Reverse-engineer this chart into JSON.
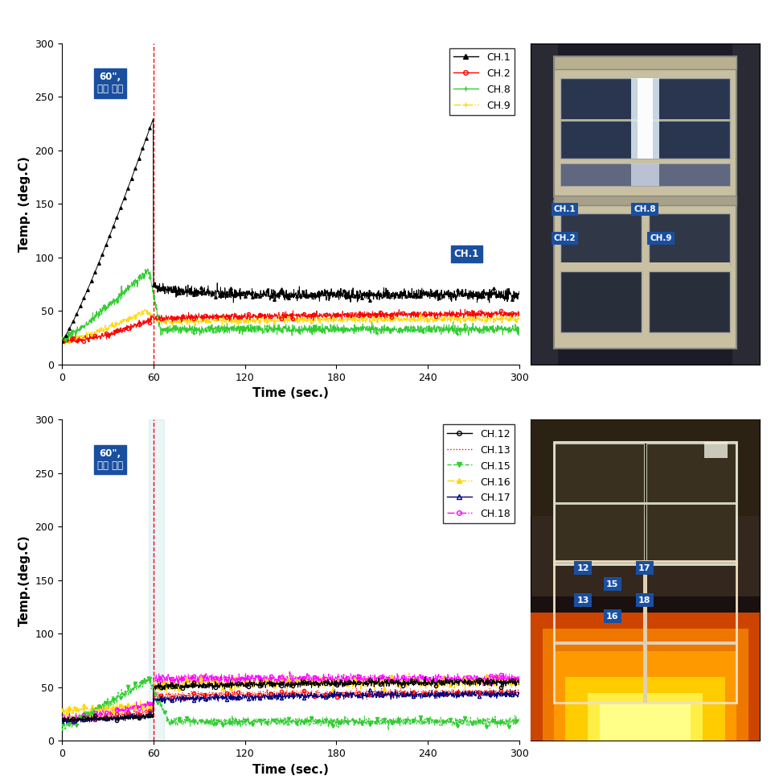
{
  "fig_width": 9.64,
  "fig_height": 9.74,
  "top_plot": {
    "ylabel": "Temp. (deg.C)",
    "xlabel": "Time (sec.)",
    "xlim": [
      0,
      300
    ],
    "ylim": [
      0,
      300
    ],
    "xticks": [
      0,
      60,
      120,
      180,
      240,
      300
    ],
    "yticks": [
      0,
      50,
      100,
      150,
      200,
      250,
      300
    ],
    "vline_x": 60,
    "annot_text": "60\",\n살수 시작",
    "ch1_label": "CH.1",
    "channels": [
      "CH.1",
      "CH.2",
      "CH.8",
      "CH.9"
    ],
    "colors": [
      "black",
      "red",
      "limegreen",
      "gold"
    ],
    "legend_markers": [
      "^",
      "o",
      "+",
      "+"
    ],
    "legend_linestyles": [
      "-",
      "-",
      "-",
      "-."
    ]
  },
  "bottom_plot": {
    "ylabel": "Temp.(deg.C)",
    "xlabel": "Time (sec.)",
    "xlim": [
      0,
      300
    ],
    "ylim": [
      0,
      300
    ],
    "xticks": [
      0,
      60,
      120,
      180,
      240,
      300
    ],
    "yticks": [
      0,
      50,
      100,
      150,
      200,
      250,
      300
    ],
    "vline_x": 60,
    "annot_text": "60\",\n살수 시작",
    "channels": [
      "CH.12",
      "CH.13",
      "CH.15",
      "CH.16",
      "CH.17",
      "CH.18"
    ],
    "colors": [
      "black",
      "red",
      "limegreen",
      "gold",
      "navy",
      "magenta"
    ],
    "legend_linestyles": [
      "-",
      ":",
      "--",
      "-.",
      "-",
      "-."
    ],
    "legend_markers": [
      "o",
      "o",
      "v",
      "^",
      "^",
      "o"
    ]
  },
  "annot_bgcolor": "#1a4fa0",
  "label_bgcolor": "#1a4fa0"
}
